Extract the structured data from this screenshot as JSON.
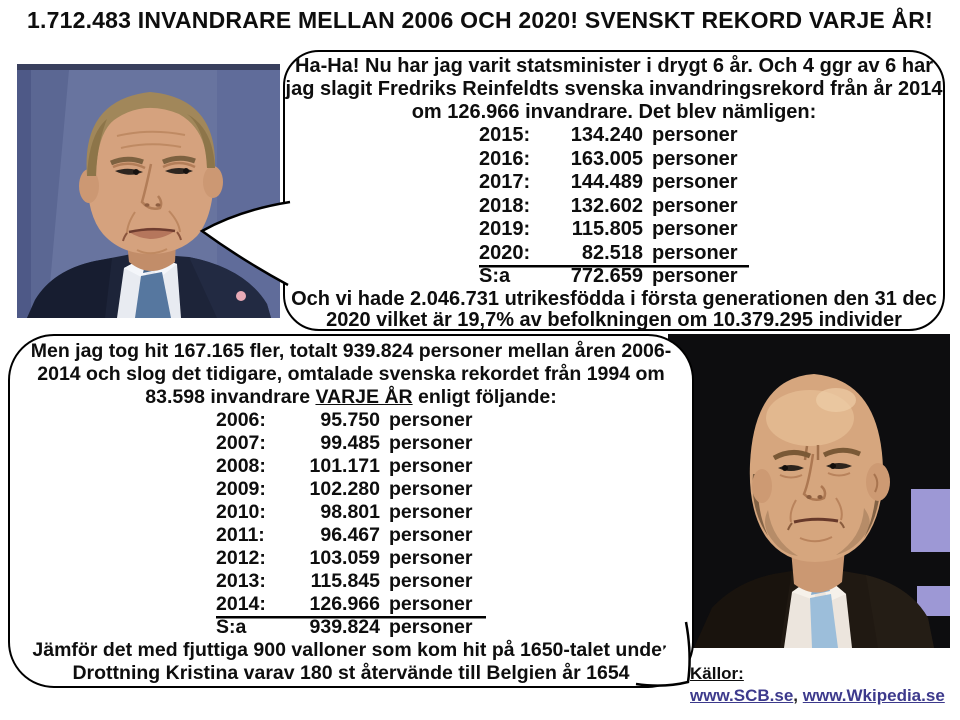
{
  "title": "1.712.483 INVANDRARE MELLAN 2006 OCH 2020! SVENSKT REKORD VARJE ÅR!",
  "bubble1": {
    "intro": "Ha-Ha! Nu har jag varit statsminister i drygt 6 år. Och 4 ggr av 6 har\njag slagit Fredriks Reinfeldts svenska invandringsrekord från år 2014\nom 126.966 invandrare. Det blev nämligen:",
    "rows": [
      {
        "year": "2015:",
        "value": "134.240",
        "unit": "personer",
        "underline": false
      },
      {
        "year": "2016:",
        "value": "163.005",
        "unit": "personer",
        "underline": false
      },
      {
        "year": "2017:",
        "value": "144.489",
        "unit": "personer",
        "underline": false
      },
      {
        "year": "2018:",
        "value": "132.602",
        "unit": "personer",
        "underline": false
      },
      {
        "year": "2019:",
        "value": "115.805",
        "unit": "personer",
        "underline": false
      },
      {
        "year": "2020:",
        "value": "82.518",
        "unit": "personer",
        "underline": true
      },
      {
        "year": "S:a",
        "value": "772.659",
        "unit": "personer",
        "underline": false
      }
    ],
    "outro": "Och vi hade 2.046.731 utrikesfödda i första generationen den 31 dec\n2020 vilket är 19,7% av befolkningen om 10.379.295 individer"
  },
  "bubble2": {
    "intro_part1": "Men jag tog hit 167.165 fler, totalt 939.824 personer mellan åren 2006-\n2014 och slog det tidigare, omtalade svenska rekordet från 1994 om\n83.598 invandrare ",
    "underlined_phrase": "VARJE ÅR",
    "intro_part2": " enligt följande:",
    "rows": [
      {
        "year": "2006:",
        "value": "95.750",
        "unit": "personer",
        "underline": false
      },
      {
        "year": "2007:",
        "value": "99.485",
        "unit": "personer",
        "underline": false
      },
      {
        "year": "2008:",
        "value": "101.171",
        "unit": "personer",
        "underline": false
      },
      {
        "year": "2009:",
        "value": "102.280",
        "unit": "personer",
        "underline": false
      },
      {
        "year": "2010:",
        "value": "98.801",
        "unit": "personer",
        "underline": false
      },
      {
        "year": "2011:",
        "value": "96.467",
        "unit": "personer",
        "underline": false
      },
      {
        "year": "2012:",
        "value": "103.059",
        "unit": "personer",
        "underline": false
      },
      {
        "year": "2013:",
        "value": "115.845",
        "unit": "personer",
        "underline": false
      },
      {
        "year": "2014:",
        "value": "126.966",
        "unit": "personer",
        "underline": true
      },
      {
        "year": "S:a",
        "value": "939.824",
        "unit": "personer",
        "underline": false
      }
    ],
    "outro": "Jämför det med fjuttiga 900 valloner som kom hit på 1650-talet under\nDrottning Kristina varav 180 st återvände till Belgien år 1654"
  },
  "sources": {
    "label": "Källor:",
    "links": [
      "www.SCB.se",
      "www.Wkipedia.se"
    ],
    "separator": ", ",
    "link_color": "#3d3a8c"
  },
  "photos": {
    "left_person": "Stefan Löfven portrait, blue backdrop, navy suit, blue tie",
    "right_person": "Fredrik Reinfeldt portrait, dark studio backdrop with lavender panels, dark suit, light blue tie"
  },
  "colors": {
    "bubble_border": "#000000",
    "page_background": "#ffffff",
    "left_photo_backdrop": "#68749f",
    "right_photo_backdrop": "#0d0d0f",
    "studio_panel": "#9d98d5"
  }
}
